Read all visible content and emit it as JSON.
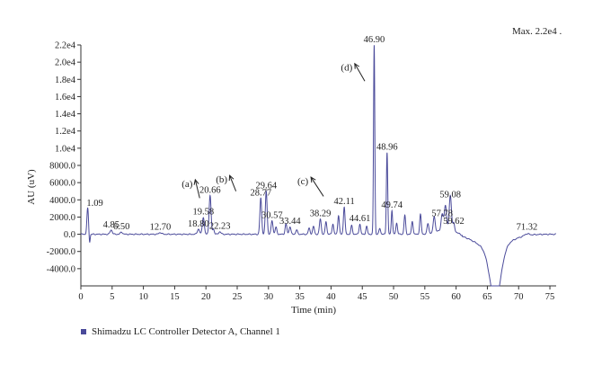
{
  "chart_data": {
    "type": "line",
    "xlabel": "Time (min)",
    "ylabel": "AU (uV)",
    "max_note": "Max. 2.2e4 .",
    "xlim": [
      0,
      76
    ],
    "ylim": [
      -6000,
      22000
    ],
    "x_ticks": [
      0,
      5,
      10,
      15,
      20,
      25,
      30,
      35,
      40,
      45,
      50,
      55,
      60,
      65,
      70,
      75
    ],
    "y_ticks": [
      {
        "value": 22000,
        "label": "2.2e4"
      },
      {
        "value": 20000,
        "label": "2.0e4"
      },
      {
        "value": 18000,
        "label": "1.8e4"
      },
      {
        "value": 16000,
        "label": "1.6e4"
      },
      {
        "value": 14000,
        "label": "1.4e4"
      },
      {
        "value": 12000,
        "label": "1.2e4"
      },
      {
        "value": 10000,
        "label": "1.0e4"
      },
      {
        "value": 8000,
        "label": "8000.0"
      },
      {
        "value": 6000,
        "label": "6000.0"
      },
      {
        "value": 4000,
        "label": "4000.0"
      },
      {
        "value": 2000,
        "label": "2000.0"
      },
      {
        "value": 0,
        "label": "0.0"
      },
      {
        "value": -2000,
        "label": "-2000.0"
      },
      {
        "value": -4000,
        "label": "-4000.0"
      }
    ],
    "series": [
      {
        "name": "Shimadzu LC Controller Detector A, Channel 1",
        "color": "#4a4a9a",
        "peaks": [
          {
            "x": 1.09,
            "y": 3000,
            "w": 0.18,
            "label": "1.09"
          },
          {
            "x": 4.85,
            "y": 500,
            "w": 0.25,
            "label": "4.85"
          },
          {
            "x": 6.5,
            "y": 250,
            "w": 0.25,
            "label": "6.50"
          },
          {
            "x": 12.7,
            "y": 200,
            "w": 0.3,
            "label": "12.70"
          },
          {
            "x": 18.8,
            "y": 600,
            "w": 0.25,
            "label": "18.80"
          },
          {
            "x": 19.58,
            "y": 2000,
            "w": 0.22,
            "label": "19.58"
          },
          {
            "x": 20.66,
            "y": 4500,
            "w": 0.22,
            "label": "20.66"
          },
          {
            "x": 22.23,
            "y": 300,
            "w": 0.25,
            "label": "22.23"
          },
          {
            "x": 28.77,
            "y": 4200,
            "w": 0.2,
            "label": "28.77"
          },
          {
            "x": 29.64,
            "y": 5000,
            "w": 0.2,
            "label": "29.64"
          },
          {
            "x": 30.57,
            "y": 1600,
            "w": 0.2,
            "label": "30.57"
          },
          {
            "x": 33.44,
            "y": 900,
            "w": 0.2,
            "label": "33.44"
          },
          {
            "x": 38.29,
            "y": 1800,
            "w": 0.2,
            "label": "38.29"
          },
          {
            "x": 42.11,
            "y": 3200,
            "w": 0.18,
            "label": "42.11"
          },
          {
            "x": 44.61,
            "y": 1200,
            "w": 0.18,
            "label": "44.61"
          },
          {
            "x": 46.9,
            "y": 22000,
            "w": 0.14,
            "label": "46.90"
          },
          {
            "x": 48.96,
            "y": 9500,
            "w": 0.15,
            "label": "48.96"
          },
          {
            "x": 49.74,
            "y": 2800,
            "w": 0.15,
            "label": "49.74"
          },
          {
            "x": 57.78,
            "y": 1800,
            "w": 0.25,
            "label": "57.78"
          },
          {
            "x": 59.08,
            "y": 4000,
            "w": 0.25,
            "label": "59.08"
          },
          {
            "x": 59.62,
            "y": 900,
            "w": 0.2,
            "label": "59.62"
          },
          {
            "x": 71.32,
            "y": 200,
            "w": 0.5,
            "label": "71.32"
          }
        ],
        "minor_peaks": [
          {
            "x": 1.4,
            "y": -1000,
            "w": 0.12
          },
          {
            "x": 21.2,
            "y": 600,
            "w": 0.2
          },
          {
            "x": 31.2,
            "y": 800,
            "w": 0.2
          },
          {
            "x": 32.8,
            "y": 1200,
            "w": 0.2
          },
          {
            "x": 34.5,
            "y": 500,
            "w": 0.2
          },
          {
            "x": 36.5,
            "y": 700,
            "w": 0.2
          },
          {
            "x": 37.2,
            "y": 900,
            "w": 0.2
          },
          {
            "x": 39.2,
            "y": 1500,
            "w": 0.18
          },
          {
            "x": 40.3,
            "y": 1200,
            "w": 0.18
          },
          {
            "x": 41.2,
            "y": 2200,
            "w": 0.18
          },
          {
            "x": 43.3,
            "y": 1000,
            "w": 0.18
          },
          {
            "x": 45.7,
            "y": 900,
            "w": 0.18
          },
          {
            "x": 47.8,
            "y": 700,
            "w": 0.18
          },
          {
            "x": 50.5,
            "y": 1300,
            "w": 0.18
          },
          {
            "x": 51.8,
            "y": 2200,
            "w": 0.18
          },
          {
            "x": 53.0,
            "y": 1500,
            "w": 0.18
          },
          {
            "x": 54.3,
            "y": 2300,
            "w": 0.18
          },
          {
            "x": 55.5,
            "y": 1200,
            "w": 0.2
          },
          {
            "x": 56.5,
            "y": 1900,
            "w": 0.22
          },
          {
            "x": 58.3,
            "y": 2800,
            "w": 0.25
          }
        ],
        "trough": {
          "x": 66.3,
          "depth": -6000,
          "w": 1.2
        },
        "broad_trough": {
          "x": 66.0,
          "depth": -1500,
          "w": 3.5
        }
      }
    ],
    "annotations": [
      {
        "label": "(a)",
        "text_x": 17.0,
        "text_y": 5500,
        "arrow_to_x": 19.0,
        "arrow_to_y": 4200
      },
      {
        "label": "(b)",
        "text_x": 22.5,
        "text_y": 6000,
        "arrow_to_x": 24.8,
        "arrow_to_y": 5000
      },
      {
        "label": "(c)",
        "text_x": 35.5,
        "text_y": 5800,
        "arrow_to_x": 38.8,
        "arrow_to_y": 4400
      },
      {
        "label": "(d)",
        "text_x": 42.5,
        "text_y": 19000,
        "arrow_to_x": 45.4,
        "arrow_to_y": 17800
      }
    ]
  },
  "legend": {
    "label": "Shimadzu LC Controller Detector A, Channel 1"
  }
}
